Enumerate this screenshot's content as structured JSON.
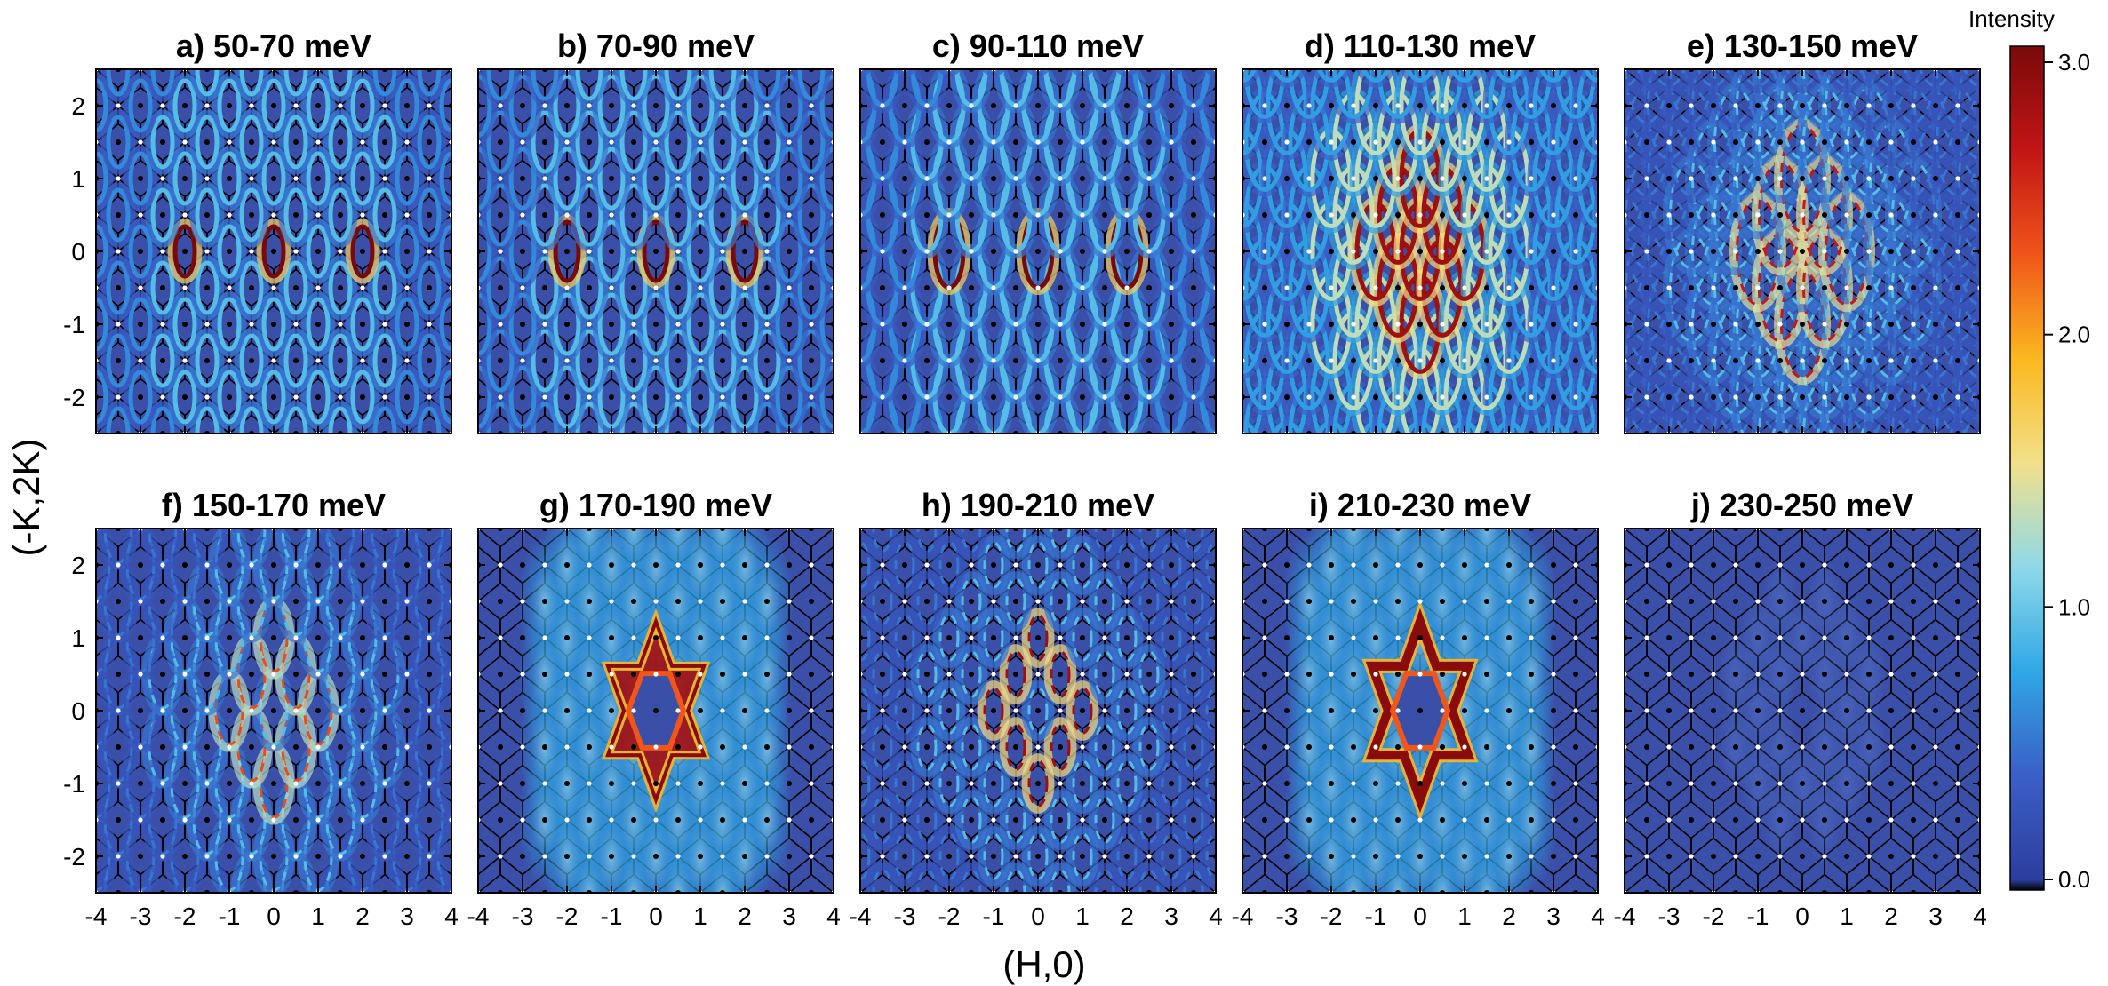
{
  "chart_data": {
    "type": "heatmap",
    "xlabel": "(H,0)",
    "ylabel": "(-K,2K)",
    "xlim": [
      -4,
      4
    ],
    "ylim": [
      -2.5,
      2.5
    ],
    "x_ticks": [
      "-4",
      "-3",
      "-2",
      "-1",
      "0",
      "1",
      "2",
      "3",
      "4"
    ],
    "y_ticks": [
      "2",
      "1",
      "0",
      "-1",
      "-2"
    ],
    "grid": "hexagonal Brillouin zone boundaries",
    "panels": [
      {
        "title": "a) 50-70 meV",
        "energy_range_meV": [
          50,
          70
        ],
        "pattern": "rings",
        "ring_radius": 0.22,
        "peak_intensity": 3.0
      },
      {
        "title": "b) 70-90 meV",
        "energy_range_meV": [
          70,
          90
        ],
        "pattern": "rings",
        "ring_radius": 0.26,
        "peak_intensity": 3.0
      },
      {
        "title": "c) 90-110 meV",
        "energy_range_meV": [
          90,
          110
        ],
        "pattern": "rings",
        "ring_radius": 0.32,
        "peak_intensity": 3.0
      },
      {
        "title": "d) 110-130 meV",
        "energy_range_meV": [
          110,
          130
        ],
        "pattern": "rings",
        "ring_radius": 0.42,
        "peak_intensity": 2.8
      },
      {
        "title": "e) 130-150 meV",
        "energy_range_meV": [
          130,
          150
        ],
        "pattern": "arcs",
        "ring_radius": 0.47,
        "peak_intensity": 2.6
      },
      {
        "title": "f) 150-170 meV",
        "energy_range_meV": [
          150,
          170
        ],
        "pattern": "arcs",
        "ring_radius": 0.3,
        "peak_intensity": 2.3
      },
      {
        "title": "g) 170-190 meV",
        "energy_range_meV": [
          170,
          190
        ],
        "pattern": "star",
        "ring_radius": 0.0,
        "peak_intensity": 3.0
      },
      {
        "title": "h) 190-210 meV",
        "energy_range_meV": [
          190,
          210
        ],
        "pattern": "arcs",
        "ring_radius": 0.2,
        "peak_intensity": 2.8
      },
      {
        "title": "i) 210-230 meV",
        "energy_range_meV": [
          210,
          230
        ],
        "pattern": "star",
        "ring_radius": 0.0,
        "peak_intensity": 3.0
      },
      {
        "title": "j) 230-250 meV",
        "energy_range_meV": [
          230,
          250
        ],
        "pattern": "faint",
        "ring_radius": 0.0,
        "peak_intensity": 0.35
      }
    ],
    "colorbar": {
      "title": "Intensity",
      "ticks": [
        "3.0",
        "2.0",
        "1.0",
        "0.0"
      ],
      "range": [
        0.0,
        3.0
      ],
      "colormap": [
        "#000000",
        "#2c3e9e",
        "#3b5fc7",
        "#2fa7e6",
        "#8fd9e8",
        "#f2e08a",
        "#fbb820",
        "#f0551a",
        "#c21515",
        "#7a0a0a"
      ]
    },
    "colors": {
      "background": "#3a4fa8",
      "grid_line": "#000000",
      "white_dot": "#ffffff",
      "black_dot": "#000000"
    }
  }
}
